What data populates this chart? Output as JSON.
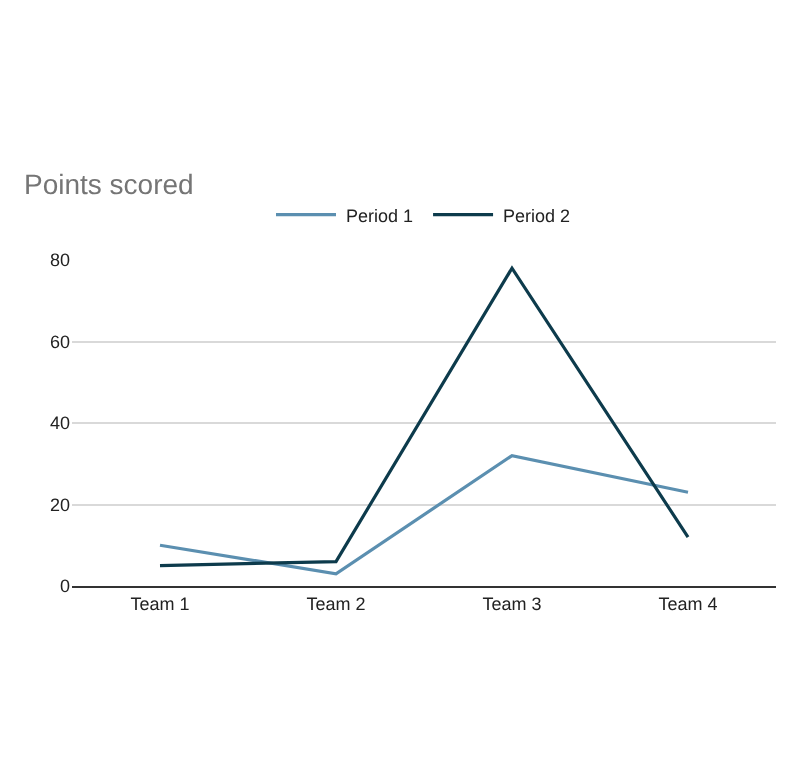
{
  "chart_data": {
    "type": "line",
    "title": "Points scored",
    "categories": [
      "Team 1",
      "Team 2",
      "Team 3",
      "Team 4"
    ],
    "series": [
      {
        "name": "Period 1",
        "color": "#5b8fb0",
        "values": [
          10,
          3,
          32,
          23
        ]
      },
      {
        "name": "Period 2",
        "color": "#0d3b4c",
        "values": [
          5,
          6,
          78,
          12
        ]
      }
    ],
    "ylim": [
      0,
      80
    ],
    "yticks": [
      0,
      20,
      40,
      60,
      80
    ],
    "grid": "y",
    "legend": "top",
    "marker": "none",
    "line_style": "solid"
  }
}
